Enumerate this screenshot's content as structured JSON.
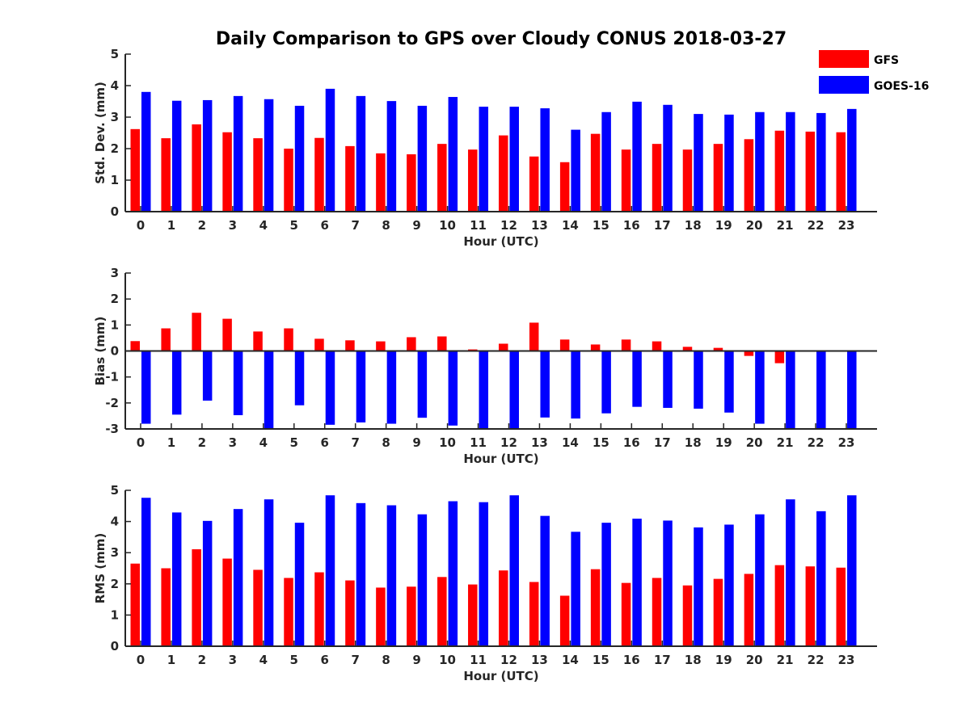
{
  "colors": {
    "gfs": "#ff0000",
    "goes": "#0000ff",
    "axis": "#262626"
  },
  "chart_data": {
    "type": "bar",
    "title": "Daily Comparison to GPS over Cloudy CONUS 2018-03-27",
    "legend": {
      "placement": "top-right",
      "entries": [
        {
          "name": "GFS",
          "color": "#ff0000"
        },
        {
          "name": "GOES-16",
          "color": "#0000ff"
        }
      ]
    },
    "categories": [
      "0",
      "1",
      "2",
      "3",
      "4",
      "5",
      "6",
      "7",
      "8",
      "9",
      "10",
      "11",
      "12",
      "13",
      "14",
      "15",
      "16",
      "17",
      "18",
      "19",
      "20",
      "21",
      "22",
      "23"
    ],
    "panels": [
      {
        "id": "stddev",
        "xlabel": "Hour (UTC)",
        "ylabel": "Std. Dev. (mm)",
        "ylim": [
          0,
          5
        ],
        "yticks": [
          0,
          1,
          2,
          3,
          4,
          5
        ],
        "series": [
          {
            "name": "GFS",
            "values": [
              2.62,
              2.33,
              2.77,
              2.52,
              2.33,
              2.0,
              2.34,
              2.08,
              1.85,
              1.82,
              2.15,
              1.97,
              2.42,
              1.75,
              1.57,
              2.47,
              1.97,
              2.15,
              1.97,
              2.15,
              2.3,
              2.57,
              2.54,
              2.52
            ]
          },
          {
            "name": "GOES-16",
            "values": [
              3.8,
              3.52,
              3.54,
              3.67,
              3.57,
              3.36,
              3.9,
              3.67,
              3.51,
              3.36,
              3.64,
              3.33,
              3.33,
              3.28,
              2.6,
              3.16,
              3.49,
              3.39,
              3.1,
              3.08,
              3.16,
              3.16,
              3.13,
              3.26
            ]
          }
        ]
      },
      {
        "id": "bias",
        "xlabel": "Hour (UTC)",
        "ylabel": "Bias (mm)",
        "ylim": [
          -3,
          3
        ],
        "yticks": [
          -3,
          -2,
          -1,
          0,
          1,
          2,
          3
        ],
        "series": [
          {
            "name": "GFS",
            "values": [
              0.38,
              0.87,
              1.47,
              1.24,
              0.75,
              0.87,
              0.47,
              0.41,
              0.37,
              0.53,
              0.56,
              0.06,
              0.28,
              1.09,
              0.44,
              0.25,
              0.44,
              0.37,
              0.16,
              0.12,
              -0.19,
              -0.47,
              0.0,
              0.0
            ]
          },
          {
            "name": "GOES-16",
            "values": [
              -2.8,
              -2.45,
              -1.91,
              -2.47,
              -3.0,
              -2.09,
              -2.84,
              -2.75,
              -2.8,
              -2.57,
              -2.87,
              -3.0,
              -3.0,
              -2.56,
              -2.6,
              -2.4,
              -2.15,
              -2.19,
              -2.22,
              -2.37,
              -2.8,
              -3.0,
              -3.0,
              -3.0
            ]
          }
        ]
      },
      {
        "id": "rms",
        "xlabel": "Hour (UTC)",
        "ylabel": "RMS (mm)",
        "ylim": [
          0,
          5
        ],
        "yticks": [
          0,
          1,
          2,
          3,
          4,
          5
        ],
        "series": [
          {
            "name": "GFS",
            "values": [
              2.65,
              2.5,
              3.11,
              2.81,
              2.45,
              2.19,
              2.37,
              2.11,
              1.88,
              1.91,
              2.22,
              1.98,
              2.43,
              2.06,
              1.62,
              2.47,
              2.03,
              2.19,
              1.95,
              2.16,
              2.32,
              2.6,
              2.56,
              2.52
            ]
          },
          {
            "name": "GOES-16",
            "values": [
              4.76,
              4.29,
              4.02,
              4.4,
              4.71,
              3.96,
              4.84,
              4.59,
              4.52,
              4.23,
              4.65,
              4.62,
              4.84,
              4.18,
              3.67,
              3.96,
              4.09,
              4.03,
              3.81,
              3.9,
              4.23,
              4.71,
              4.33,
              4.84
            ]
          }
        ]
      }
    ]
  }
}
